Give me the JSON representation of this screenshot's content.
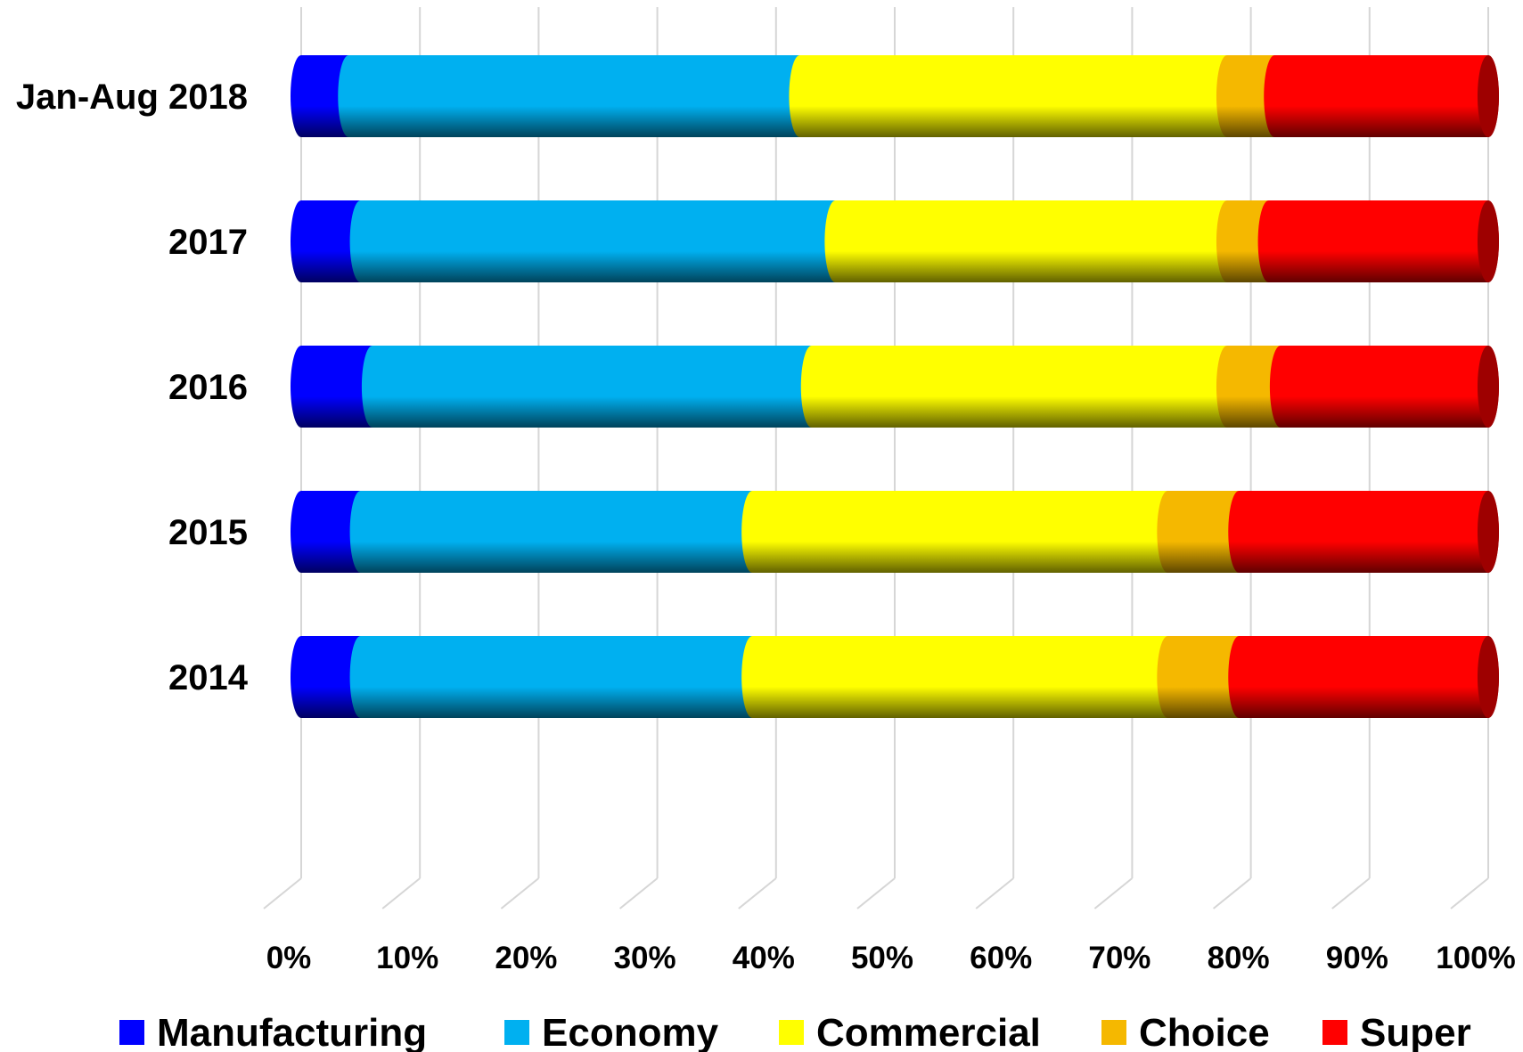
{
  "chart_data": {
    "type": "bar",
    "orientation": "horizontal",
    "stacked": "percent",
    "style": "3d-cylinder",
    "categories": [
      "Jan-Aug 2018",
      "2017",
      "2016",
      "2015",
      "2014"
    ],
    "series": [
      {
        "name": "Manufacturing",
        "color": "#0000FF",
        "values": [
          4,
          5,
          6,
          5,
          5
        ]
      },
      {
        "name": "Economy",
        "color": "#00B0F0",
        "values": [
          38,
          40,
          37,
          33,
          33
        ]
      },
      {
        "name": "Commercial",
        "color": "#FFFF00",
        "values": [
          36,
          33,
          35,
          35,
          35
        ]
      },
      {
        "name": "Choice",
        "color": "#F5B800",
        "values": [
          4,
          3.5,
          4.5,
          6,
          6
        ]
      },
      {
        "name": "Super",
        "color": "#FF0000",
        "values": [
          18,
          18.5,
          17.5,
          21,
          21
        ]
      }
    ],
    "x_ticks": [
      "0%",
      "10%",
      "20%",
      "30%",
      "40%",
      "50%",
      "60%",
      "70%",
      "80%",
      "90%",
      "100%"
    ],
    "xlim": [
      0,
      100
    ],
    "grid": true,
    "legend_position": "bottom",
    "title": "",
    "xlabel": "",
    "ylabel": ""
  }
}
